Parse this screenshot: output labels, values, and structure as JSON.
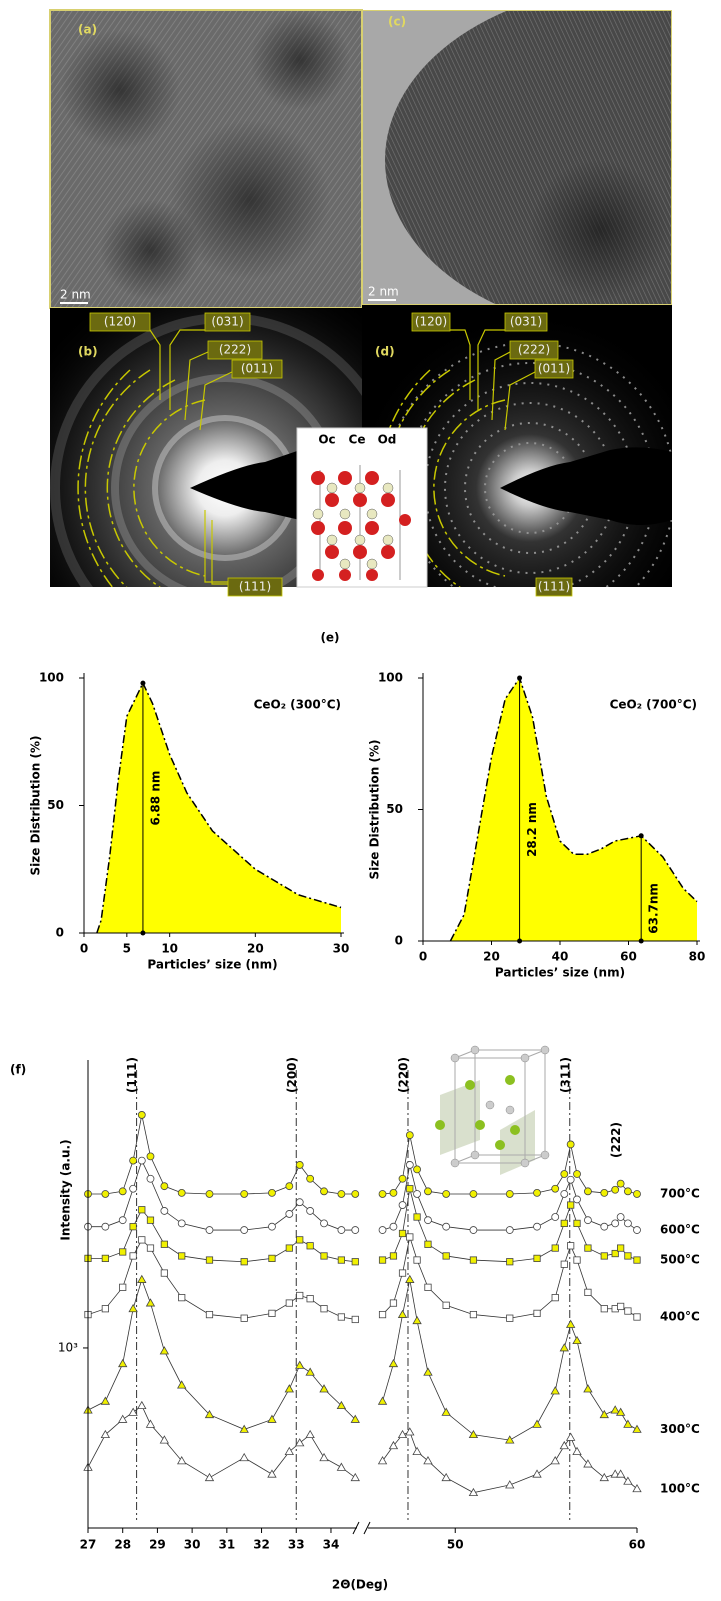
{
  "images": [
    {
      "label": "(a)",
      "scale": "2 nm"
    },
    {
      "label": "(c)",
      "scale": "2 nm"
    }
  ],
  "diffraction": [
    {
      "label": "(b)",
      "planes": [
        "(120)",
        "(031)",
        "(222)",
        "(011)",
        "(111)"
      ]
    },
    {
      "label": "(d)",
      "planes": [
        "(120)",
        "(031)",
        "(222)",
        "(011)",
        "(111)"
      ]
    }
  ],
  "crystal_labels": [
    "Oc",
    "Ce",
    "Od"
  ],
  "panel_e": "(e)",
  "chart_data": [
    {
      "type": "area",
      "title": "CeO₂ (300°C)",
      "x_label": "Particles’ size (nm)",
      "y_label": "Size Distribution (%)",
      "x": [
        1.5,
        2,
        3,
        4,
        5,
        6.88,
        8,
        10,
        12,
        15,
        20,
        25,
        30
      ],
      "values": [
        0,
        5,
        30,
        60,
        85,
        98,
        90,
        70,
        55,
        40,
        25,
        15,
        10
      ],
      "color": "#ffff00",
      "xlim": [
        0,
        30
      ],
      "ylim": [
        0,
        100
      ],
      "xticks": [
        0,
        5,
        10,
        20,
        30
      ],
      "yticks": [
        0,
        50,
        100
      ],
      "annotations": [
        {
          "text": "6.88 nm",
          "x": 6.88,
          "y": 98
        }
      ]
    },
    {
      "type": "area",
      "title": "CeO₂ (700°C)",
      "x_label": "Particles’ size (nm)",
      "y_label": "Size Distribution (%)",
      "x": [
        8,
        12,
        16,
        20,
        24,
        28.2,
        32,
        36,
        40,
        44,
        48,
        52,
        56,
        63.7,
        70,
        76,
        80
      ],
      "values": [
        0,
        10,
        40,
        70,
        92,
        100,
        85,
        55,
        38,
        33,
        33,
        35,
        38,
        40,
        32,
        20,
        15
      ],
      "color": "#ffff00",
      "xlim": [
        0,
        80
      ],
      "ylim": [
        0,
        100
      ],
      "xticks": [
        0,
        20,
        40,
        60,
        80
      ],
      "yticks": [
        0,
        50,
        100
      ],
      "annotations": [
        {
          "text": "28.2 nm",
          "x": 28.2,
          "y": 100
        },
        {
          "text": "63.7nm",
          "x": 63.7,
          "y": 40
        }
      ]
    },
    {
      "type": "line",
      "panel_label": "(f)",
      "x_label": "2Θ(Deg)",
      "y_label": "Intensity (a.u.)",
      "log_y": true,
      "xlim": [
        27,
        60
      ],
      "x_break": [
        34.75,
        45.2
      ],
      "ylim": [
        300,
        6000
      ],
      "xticks": [
        27,
        28,
        29,
        30,
        31,
        32,
        33,
        34,
        50,
        60
      ],
      "yticks": [
        {
          "value": 1000,
          "label": "10³"
        }
      ],
      "x": [
        27,
        27.5,
        28,
        28.3,
        28.55,
        28.8,
        29.2,
        29.7,
        30.5,
        31.5,
        32.3,
        32.8,
        33.1,
        33.4,
        33.8,
        34.3,
        34.7,
        46,
        46.6,
        47.1,
        47.5,
        47.9,
        48.5,
        49.5,
        51,
        53,
        54.5,
        55.5,
        56,
        56.35,
        56.7,
        57.3,
        58.2,
        58.8,
        59.1,
        59.5,
        60
      ],
      "peaks": [
        {
          "text": "(111)",
          "x": 28.4
        },
        {
          "text": "(200)",
          "x": 33.0
        },
        {
          "text": "(220)",
          "x": 47.4
        },
        {
          "text": "(311)",
          "x": 56.3
        },
        {
          "text": "(222)",
          "x": 59.1
        }
      ],
      "series": [
        {
          "name": "700°C",
          "color": "#f0f000",
          "marker": "circle",
          "values": [
            2800,
            2800,
            2850,
            3500,
            4750,
            3600,
            2950,
            2820,
            2800,
            2800,
            2820,
            2950,
            3400,
            3100,
            2850,
            2800,
            2800,
            2800,
            2820,
            3100,
            4150,
            3300,
            2850,
            2800,
            2800,
            2800,
            2820,
            2900,
            3200,
            3900,
            3200,
            2850,
            2820,
            2880,
            3000,
            2850,
            2800
          ]
        },
        {
          "name": "600°C",
          "color": "#ffffff",
          "marker": "circle",
          "values": [
            2250,
            2250,
            2350,
            2900,
            3500,
            3100,
            2500,
            2300,
            2200,
            2200,
            2250,
            2450,
            2650,
            2500,
            2300,
            2200,
            2200,
            2200,
            2250,
            2600,
            3400,
            2800,
            2350,
            2250,
            2200,
            2200,
            2250,
            2400,
            2800,
            3080,
            2700,
            2350,
            2250,
            2300,
            2400,
            2300,
            2200
          ]
        },
        {
          "name": "500°C",
          "color": "#f0f000",
          "marker": "square",
          "values": [
            1820,
            1820,
            1900,
            2250,
            2520,
            2350,
            2000,
            1850,
            1800,
            1780,
            1820,
            1950,
            2060,
            1980,
            1850,
            1800,
            1780,
            1800,
            1850,
            2150,
            2900,
            2400,
            2000,
            1850,
            1800,
            1780,
            1820,
            1950,
            2300,
            2600,
            2300,
            1950,
            1850,
            1880,
            1950,
            1850,
            1800
          ]
        },
        {
          "name": "400°C",
          "color": "#ffffff",
          "marker": "square",
          "values": [
            1250,
            1300,
            1500,
            1850,
            2060,
            1950,
            1650,
            1400,
            1250,
            1220,
            1260,
            1350,
            1420,
            1390,
            1300,
            1230,
            1210,
            1250,
            1350,
            1650,
            2100,
            1800,
            1500,
            1330,
            1250,
            1220,
            1260,
            1400,
            1750,
            1980,
            1800,
            1450,
            1300,
            1300,
            1320,
            1280,
            1230
          ]
        },
        {
          "name": "300°C",
          "color": "#f0f000",
          "marker": "triangle",
          "values": [
            660,
            700,
            900,
            1300,
            1580,
            1350,
            980,
            780,
            640,
            580,
            620,
            760,
            890,
            850,
            760,
            680,
            620,
            700,
            900,
            1250,
            1580,
            1200,
            850,
            650,
            560,
            540,
            600,
            750,
            1000,
            1170,
            1050,
            760,
            640,
            660,
            650,
            600,
            580
          ]
        },
        {
          "name": "100°C",
          "color": "#ffffff",
          "marker": "triangle",
          "values": [
            450,
            560,
            620,
            650,
            680,
            600,
            540,
            470,
            420,
            480,
            430,
            500,
            530,
            560,
            480,
            450,
            420,
            470,
            520,
            560,
            570,
            500,
            470,
            420,
            380,
            400,
            430,
            470,
            520,
            550,
            500,
            460,
            420,
            430,
            430,
            410,
            390
          ]
        }
      ]
    }
  ]
}
